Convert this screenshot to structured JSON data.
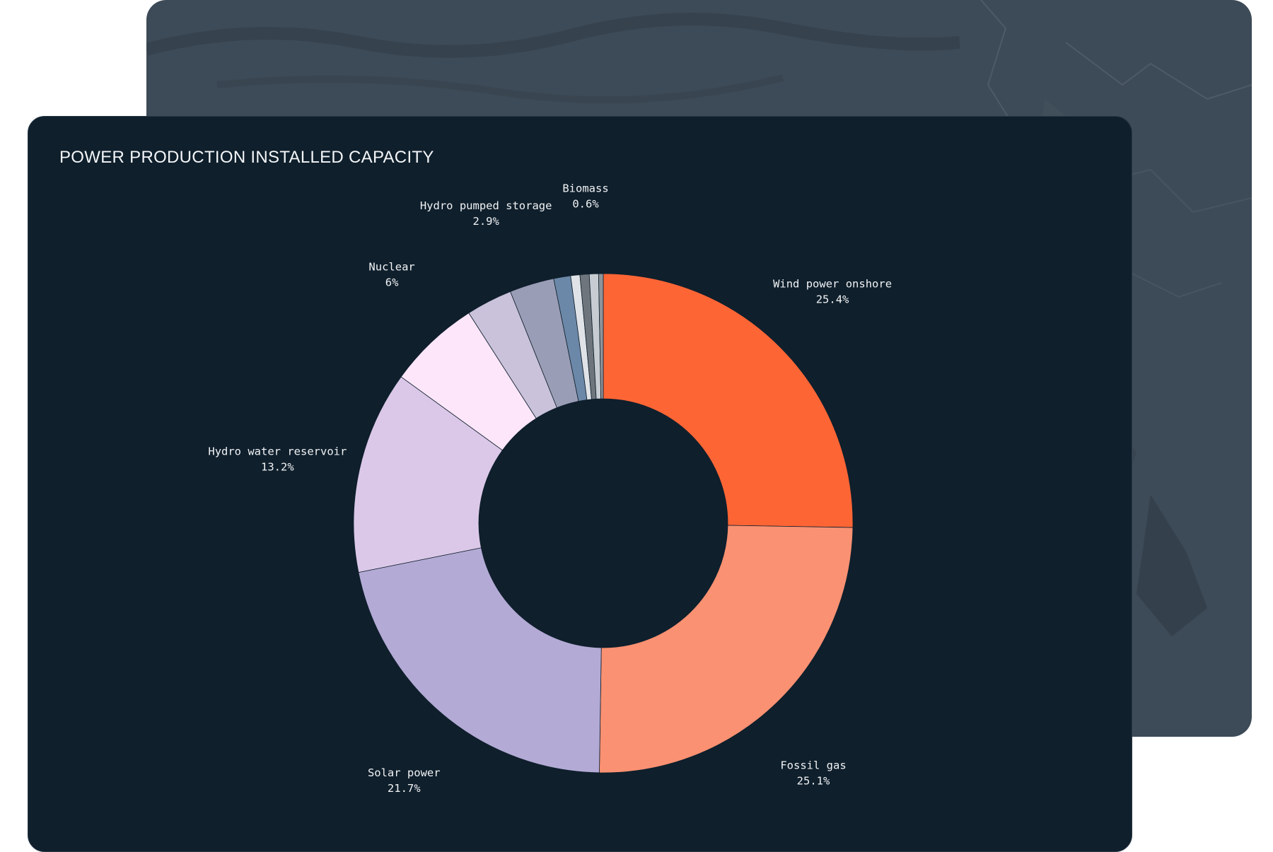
{
  "chart_data": {
    "type": "pie",
    "variant": "donut",
    "title": "POWER PRODUCTION INSTALLED CAPACITY",
    "unit": "%",
    "slices": [
      {
        "label": "Wind power onshore",
        "value": 25.4,
        "value_label": "25.4%",
        "color": "#fd6535"
      },
      {
        "label": "Fossil gas",
        "value": 25.1,
        "value_label": "25.1%",
        "color": "#fa9172"
      },
      {
        "label": "Solar power",
        "value": 21.7,
        "value_label": "21.7%",
        "color": "#b3aad5"
      },
      {
        "label": "Hydro water reservoir",
        "value": 13.2,
        "value_label": "13.2%",
        "color": "#dbc8e8"
      },
      {
        "label": "Nuclear",
        "value": 6,
        "value_label": "6%",
        "color": "#fde6fa"
      },
      {
        "label": "",
        "value": 3.0,
        "value_label": "",
        "color": "#c9c2da"
      },
      {
        "label": "Hydro pumped storage",
        "value": 2.9,
        "value_label": "2.9%",
        "color": "#9a9db6"
      },
      {
        "label": "",
        "value": 1.1,
        "value_label": "",
        "color": "#6c88a8"
      },
      {
        "label": "",
        "value": 0.6,
        "value_label": "",
        "color": "#dfe3e7"
      },
      {
        "label": "",
        "value": 0.6,
        "value_label": "",
        "color": "#6e757c"
      },
      {
        "label": "Biomass",
        "value": 0.6,
        "value_label": "0.6%",
        "color": "#c6ccd1"
      },
      {
        "label": "",
        "value": 0.3,
        "value_label": "",
        "color": "#8d949a"
      }
    ],
    "legend": "none"
  },
  "colors": {
    "card_background": "#0f1f2c",
    "map_background": "#3d4a57",
    "label_text": "#f1f3f5"
  }
}
